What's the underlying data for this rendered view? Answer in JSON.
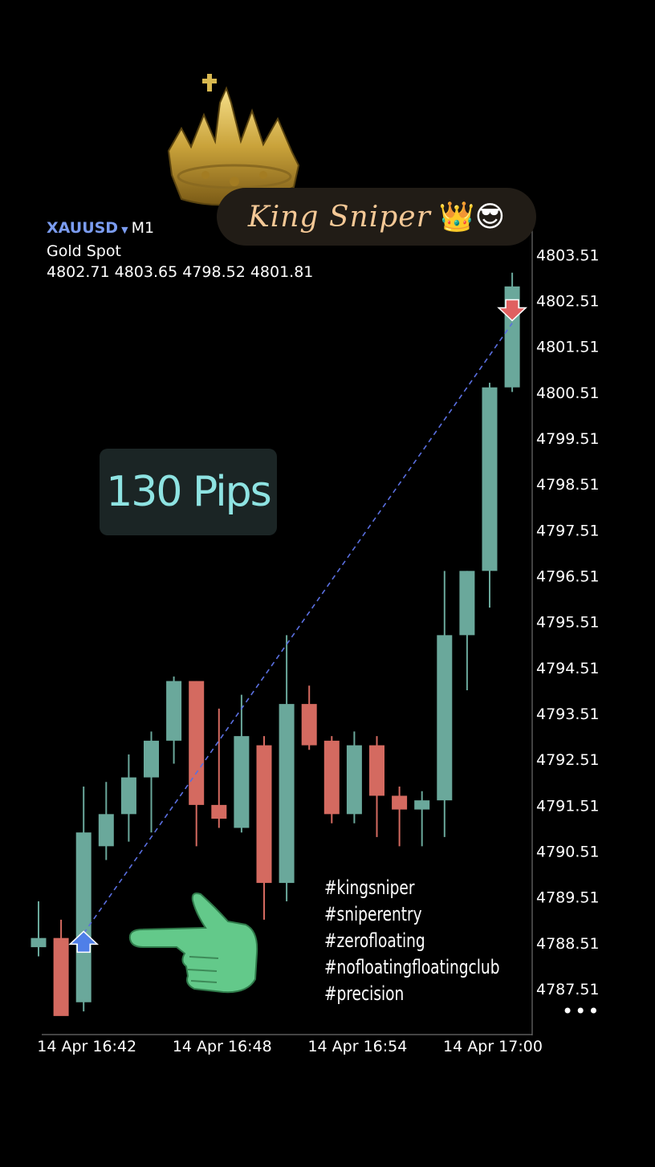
{
  "header": {
    "symbol": "XAUUSD",
    "timeframe": "M1",
    "name": "Gold Spot",
    "ohlc": "4802.71 4803.65 4798.52 4801.81"
  },
  "overlay": {
    "brand": "King Sniper",
    "brand_emoji": "👑😎",
    "pips_label": "130 Pips",
    "hashtags": [
      "#kingsniper",
      "#sniperentry",
      "#zerofloating",
      "#nofloatingfloatingclub",
      "#precision"
    ],
    "more_label": "•••"
  },
  "icons": [
    "crown-icon",
    "pointing-hand-icon",
    "buy-arrow-icon",
    "sell-arrow-icon",
    "more-icon"
  ],
  "colors": {
    "bull": "#6aa89b",
    "bear": "#d46a60",
    "buy_arrow": "#4f7fe8",
    "sell_arrow": "#e06060",
    "trend_line": "#5a6fe0",
    "symbol": "#7b9cf0",
    "pips_text": "#8ee3e2",
    "brand_text": "#f4c896"
  },
  "chart_data": {
    "type": "candlestick",
    "symbol": "XAUUSD",
    "timeframe": "M1",
    "ylim": [
      4786.9,
      4804.3
    ],
    "y_ticks": [
      4787.51,
      4788.51,
      4789.51,
      4790.51,
      4791.51,
      4792.51,
      4793.51,
      4794.51,
      4795.51,
      4796.51,
      4797.51,
      4798.51,
      4799.51,
      4800.51,
      4801.51,
      4802.51,
      4803.51
    ],
    "y_tick_labels": [
      "4787.51",
      "4788.51",
      "4789.51",
      "4790.51",
      "4791.51",
      "4792.51",
      "4793.51",
      "4794.51",
      "4795.51",
      "4796.51",
      "4797.51",
      "4798.51",
      "4799.51",
      "4800.51",
      "4801.51",
      "4802.51",
      "4803.51"
    ],
    "x_tick_labels": [
      {
        "label": "14 Apr 16:42",
        "index": 2
      },
      {
        "label": "14 Apr 16:48",
        "index": 8
      },
      {
        "label": "14 Apr 16:54",
        "index": 14
      },
      {
        "label": "14 Apr 17:00",
        "index": 20
      }
    ],
    "candles": [
      {
        "o": 4788.4,
        "h": 4789.4,
        "l": 4788.2,
        "c": 4788.6
      },
      {
        "o": 4788.6,
        "h": 4789.0,
        "l": 4787.0,
        "c": 4786.9
      },
      {
        "o": 4787.2,
        "h": 4791.9,
        "l": 4787.0,
        "c": 4790.9
      },
      {
        "o": 4790.6,
        "h": 4792.0,
        "l": 4790.3,
        "c": 4791.3
      },
      {
        "o": 4791.3,
        "h": 4792.6,
        "l": 4790.7,
        "c": 4792.1
      },
      {
        "o": 4792.1,
        "h": 4793.1,
        "l": 4790.9,
        "c": 4792.9
      },
      {
        "o": 4792.9,
        "h": 4794.3,
        "l": 4792.4,
        "c": 4794.2
      },
      {
        "o": 4794.2,
        "h": 4794.2,
        "l": 4790.6,
        "c": 4791.5
      },
      {
        "o": 4791.5,
        "h": 4793.6,
        "l": 4791.0,
        "c": 4791.2
      },
      {
        "o": 4791.0,
        "h": 4793.9,
        "l": 4790.9,
        "c": 4793.0
      },
      {
        "o": 4792.8,
        "h": 4793.0,
        "l": 4789.0,
        "c": 4789.8
      },
      {
        "o": 4789.8,
        "h": 4795.2,
        "l": 4789.4,
        "c": 4793.7
      },
      {
        "o": 4793.7,
        "h": 4794.1,
        "l": 4792.7,
        "c": 4792.8
      },
      {
        "o": 4792.9,
        "h": 4793.0,
        "l": 4791.1,
        "c": 4791.3
      },
      {
        "o": 4791.3,
        "h": 4793.1,
        "l": 4791.1,
        "c": 4792.8
      },
      {
        "o": 4792.8,
        "h": 4793.0,
        "l": 4790.8,
        "c": 4791.7
      },
      {
        "o": 4791.7,
        "h": 4791.9,
        "l": 4790.6,
        "c": 4791.4
      },
      {
        "o": 4791.4,
        "h": 4791.8,
        "l": 4790.6,
        "c": 4791.6
      },
      {
        "o": 4791.6,
        "h": 4796.6,
        "l": 4790.8,
        "c": 4795.2
      },
      {
        "o": 4795.2,
        "h": 4796.6,
        "l": 4794.0,
        "c": 4796.6
      },
      {
        "o": 4796.6,
        "h": 4800.7,
        "l": 4795.8,
        "c": 4800.6
      },
      {
        "o": 4800.6,
        "h": 4803.1,
        "l": 4800.5,
        "c": 4802.8
      }
    ],
    "trend_line": {
      "from": {
        "index": 2,
        "price": 4788.7
      },
      "to": {
        "index": 21,
        "price": 4802.0
      }
    },
    "markers": [
      {
        "type": "buy",
        "index": 2,
        "price": 4788.5
      },
      {
        "type": "sell",
        "index": 21,
        "price": 4802.3
      }
    ]
  }
}
